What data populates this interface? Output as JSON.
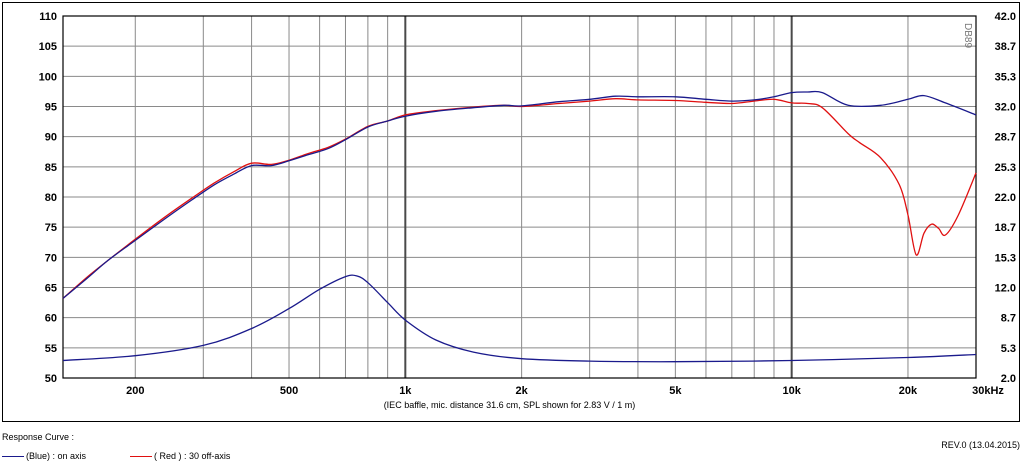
{
  "colors": {
    "blue": "#1a1a8c",
    "red": "#e01010",
    "grid": "#8a8a8a",
    "grid_major": "#4a4a4a"
  },
  "chart_data": {
    "type": "line",
    "title": "",
    "xlabel": "",
    "ylabel": "",
    "x_scale": "log",
    "xlim": [
      130,
      30000
    ],
    "ylim": [
      50,
      110
    ],
    "y2lim": [
      2.0,
      42.0
    ],
    "grid": true,
    "y_ticks": [
      "50",
      "55",
      "60",
      "65",
      "70",
      "75",
      "80",
      "85",
      "90",
      "95",
      "100",
      "105",
      "110"
    ],
    "y2_ticks": [
      "2.0",
      "5.3",
      "8.7",
      "12.0",
      "15.3",
      "18.7",
      "22.0",
      "25.3",
      "28.7",
      "32.0",
      "35.3",
      "38.7",
      "42.0"
    ],
    "x_tick_labels": [
      {
        "x": 200,
        "label": "200"
      },
      {
        "x": 500,
        "label": "500"
      },
      {
        "x": 1000,
        "label": "1k"
      },
      {
        "x": 2000,
        "label": "2k"
      },
      {
        "x": 5000,
        "label": "5k"
      },
      {
        "x": 10000,
        "label": "10k"
      },
      {
        "x": 20000,
        "label": "20k"
      },
      {
        "x": 30000,
        "label": "30kHz"
      }
    ],
    "x_gridlines": [
      200,
      300,
      400,
      500,
      600,
      700,
      800,
      900,
      1000,
      2000,
      3000,
      4000,
      5000,
      6000,
      7000,
      8000,
      9000,
      10000,
      20000,
      30000
    ],
    "x_major_gridlines": [
      1000,
      10000
    ],
    "note": "(IEC baffle, mic. distance 31.6 cm, SPL shown for 2.83 V / 1 m)",
    "side_label": "DB89",
    "series": [
      {
        "name": "(Blue) : on axis",
        "color": "#1a1a8c",
        "x": [
          130,
          150,
          170,
          200,
          240,
          280,
          320,
          360,
          400,
          450,
          500,
          560,
          630,
          700,
          800,
          900,
          1000,
          1200,
          1500,
          1800,
          2000,
          2500,
          3000,
          3500,
          4000,
          5000,
          6000,
          7000,
          8000,
          9000,
          10000,
          11000,
          12000,
          14000,
          17000,
          20000,
          22000,
          25000,
          30000
        ],
        "y": [
          63.2,
          66.5,
          69.5,
          72.8,
          76.5,
          79.5,
          82,
          83.8,
          85.2,
          85.2,
          86,
          87,
          88,
          89.5,
          91.6,
          92.6,
          93.4,
          94.2,
          94.8,
          95.2,
          95.1,
          95.8,
          96.2,
          96.7,
          96.6,
          96.6,
          96.2,
          95.9,
          96.1,
          96.6,
          97.3,
          97.4,
          97.3,
          95.2,
          95.2,
          96.2,
          96.8,
          95.6,
          93.6
        ]
      },
      {
        "name": "( Red ) : 30 off-axis",
        "color": "#e01010",
        "x": [
          130,
          150,
          170,
          200,
          240,
          280,
          320,
          360,
          400,
          450,
          500,
          560,
          630,
          700,
          800,
          900,
          1000,
          1200,
          1500,
          1800,
          2000,
          2500,
          3000,
          3500,
          4000,
          5000,
          6000,
          7000,
          8000,
          9000,
          10000,
          11000,
          12000,
          14000,
          15000,
          17000,
          19000,
          20000,
          21000,
          22000,
          23000,
          24000,
          25000,
          27000,
          30000
        ],
        "y": [
          63.2,
          66.7,
          69.5,
          73,
          76.8,
          79.8,
          82.3,
          84.2,
          85.6,
          85.4,
          86.1,
          87.2,
          88.2,
          89.6,
          91.7,
          92.6,
          93.6,
          94.3,
          94.9,
          95.2,
          95,
          95.5,
          95.9,
          96.3,
          96.1,
          96,
          95.7,
          95.5,
          95.9,
          96.2,
          95.6,
          95.5,
          94.8,
          90.5,
          89,
          86.5,
          82,
          77,
          70.4,
          74,
          75.5,
          74.8,
          73.7,
          77,
          84
        ]
      },
      {
        "name": "",
        "color": "#1a1a8c",
        "x": [
          130,
          200,
          300,
          400,
          500,
          600,
          700,
          750,
          800,
          900,
          1000,
          1200,
          1500,
          2000,
          3000,
          5000,
          10000,
          20000,
          30000
        ],
        "y": [
          52.9,
          53.7,
          55.4,
          58.2,
          61.5,
          64.7,
          66.8,
          66.9,
          65.8,
          62.5,
          59.6,
          56.3,
          54.3,
          53.2,
          52.8,
          52.7,
          52.9,
          53.4,
          53.9
        ]
      }
    ]
  },
  "legend": {
    "title": "Response Curve :",
    "blue_label": "(Blue) : on axis",
    "red_label": "( Red ) : 30 off-axis"
  },
  "revision": "REV.0 (13.04.2015)"
}
